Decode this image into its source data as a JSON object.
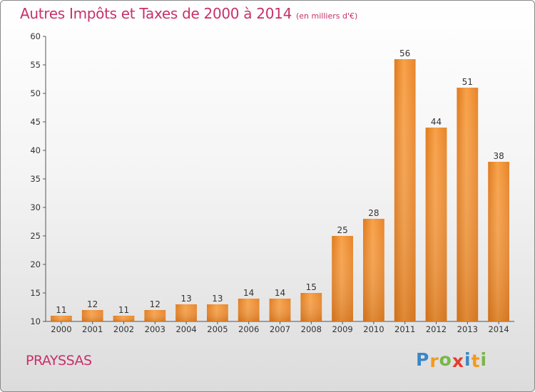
{
  "title": "Autres Impôts et Taxes de 2000 à 2014",
  "unit": "(en milliers d'€)",
  "commune": "PRAYSSAS",
  "logo": {
    "letters": [
      "P",
      "r",
      "o",
      "x",
      "i",
      "t",
      "i"
    ],
    "colors": [
      "#3a87c8",
      "#f29a1f",
      "#7ab648",
      "#e63c2d",
      "#3a87c8",
      "#f29a1f",
      "#7ab648"
    ]
  },
  "chart_data": {
    "type": "bar",
    "categories": [
      "2000",
      "2001",
      "2002",
      "2003",
      "2004",
      "2005",
      "2006",
      "2007",
      "2008",
      "2009",
      "2010",
      "2011",
      "2012",
      "2013",
      "2014"
    ],
    "values": [
      11,
      12,
      11,
      12,
      13,
      13,
      14,
      14,
      15,
      25,
      28,
      56,
      44,
      51,
      38
    ],
    "ylim": [
      10,
      60
    ],
    "yticks": [
      10,
      15,
      20,
      25,
      30,
      35,
      40,
      45,
      50,
      55,
      60
    ],
    "grid": false,
    "bar_color": "#f08a2a"
  }
}
